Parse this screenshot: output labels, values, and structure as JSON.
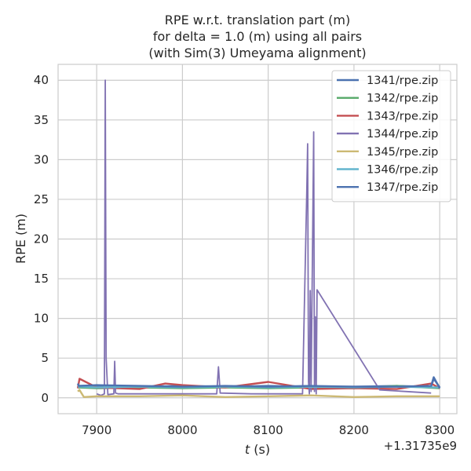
{
  "chart_data": {
    "type": "line",
    "title": [
      "RPE w.r.t. translation part (m)",
      "for delta = 1.0 (m) using all pairs",
      "(with Sim(3) Umeyama alignment)"
    ],
    "xlabel": "t (s)",
    "xlabel_italic_part": "t",
    "xlabel_rest": " (s)",
    "ylabel": "RPE (m)",
    "x_offset_label": "+1.31735e9",
    "xlim": [
      7855,
      8320
    ],
    "ylim": [
      -2.0,
      42.0
    ],
    "xticks": [
      7900,
      8000,
      8100,
      8200,
      8300
    ],
    "xtick_labels": [
      "7900",
      "8000",
      "8100",
      "8200",
      "8300"
    ],
    "yticks": [
      0,
      5,
      10,
      15,
      20,
      25,
      30,
      35,
      40
    ],
    "ytick_labels": [
      "0",
      "5",
      "10",
      "15",
      "20",
      "25",
      "30",
      "35",
      "40"
    ],
    "grid": true,
    "legend_position": "top-right",
    "series": [
      {
        "name": "1341/rpe.zip",
        "color": "#4c72b0",
        "x": [
          7878,
          7880,
          7900,
          7950,
          8000,
          8050,
          8100,
          8150,
          8200,
          8250,
          8290,
          8293,
          8300
        ],
        "y": [
          1.6,
          1.5,
          1.5,
          1.4,
          1.5,
          1.4,
          1.5,
          1.4,
          1.4,
          1.5,
          1.4,
          2.4,
          1.3
        ]
      },
      {
        "name": "1342/rpe.zip",
        "color": "#55a868",
        "x": [
          7878,
          7900,
          7950,
          8000,
          8050,
          8100,
          8150,
          8200,
          8250,
          8300
        ],
        "y": [
          1.3,
          1.2,
          1.3,
          1.2,
          1.3,
          1.2,
          1.3,
          1.2,
          1.5,
          1.2
        ]
      },
      {
        "name": "1343/rpe.zip",
        "color": "#c44e52",
        "x": [
          7878,
          7880,
          7900,
          7950,
          7980,
          8000,
          8050,
          8100,
          8150,
          8200,
          8250,
          8290,
          8300
        ],
        "y": [
          1.2,
          2.4,
          1.3,
          1.1,
          1.8,
          1.6,
          1.3,
          2.0,
          1.1,
          1.2,
          1.1,
          1.8,
          1.2
        ]
      },
      {
        "name": "1344/rpe.zip",
        "color": "#8172b2",
        "x": [
          7900,
          7905,
          7909,
          7910,
          7911,
          7913,
          7920,
          7921,
          7922,
          7925,
          8040,
          8042,
          8044,
          8080,
          8140,
          8145,
          8146,
          8147,
          8148,
          8149,
          8150,
          8153,
          8154,
          8155,
          8156,
          8157,
          8230,
          8290
        ],
        "y": [
          0.5,
          0.3,
          0.5,
          40.0,
          5.0,
          0.4,
          0.5,
          4.6,
          0.6,
          0.5,
          0.5,
          3.9,
          0.6,
          0.5,
          0.5,
          26.0,
          32.0,
          2.0,
          0.5,
          13.5,
          0.8,
          33.5,
          0.8,
          10.2,
          0.5,
          13.6,
          1.0,
          0.6
        ]
      },
      {
        "name": "1345/rpe.zip",
        "color": "#ccb974",
        "x": [
          7878,
          7880,
          7885,
          7900,
          7950,
          8000,
          8050,
          8100,
          8150,
          8200,
          8250,
          8300
        ],
        "y": [
          0.8,
          1.0,
          0.1,
          0.2,
          0.2,
          0.3,
          0.1,
          0.2,
          0.3,
          0.1,
          0.2,
          0.2
        ]
      },
      {
        "name": "1346/rpe.zip",
        "color": "#64b5cd",
        "x": [
          7878,
          7900,
          7950,
          8000,
          8050,
          8100,
          8150,
          8200,
          8250,
          8300
        ],
        "y": [
          1.4,
          1.3,
          1.4,
          1.3,
          1.4,
          1.3,
          1.4,
          1.3,
          1.4,
          1.3
        ]
      },
      {
        "name": "1347/rpe.zip",
        "color": "#4c72b0",
        "x": [
          7878,
          7879,
          7900,
          7950,
          8000,
          8050,
          8100,
          8150,
          8200,
          8250,
          8290,
          8293,
          8300
        ],
        "y": [
          1.8,
          1.5,
          1.6,
          1.5,
          1.4,
          1.5,
          1.4,
          1.5,
          1.4,
          1.4,
          1.5,
          2.6,
          1.2
        ]
      }
    ]
  }
}
